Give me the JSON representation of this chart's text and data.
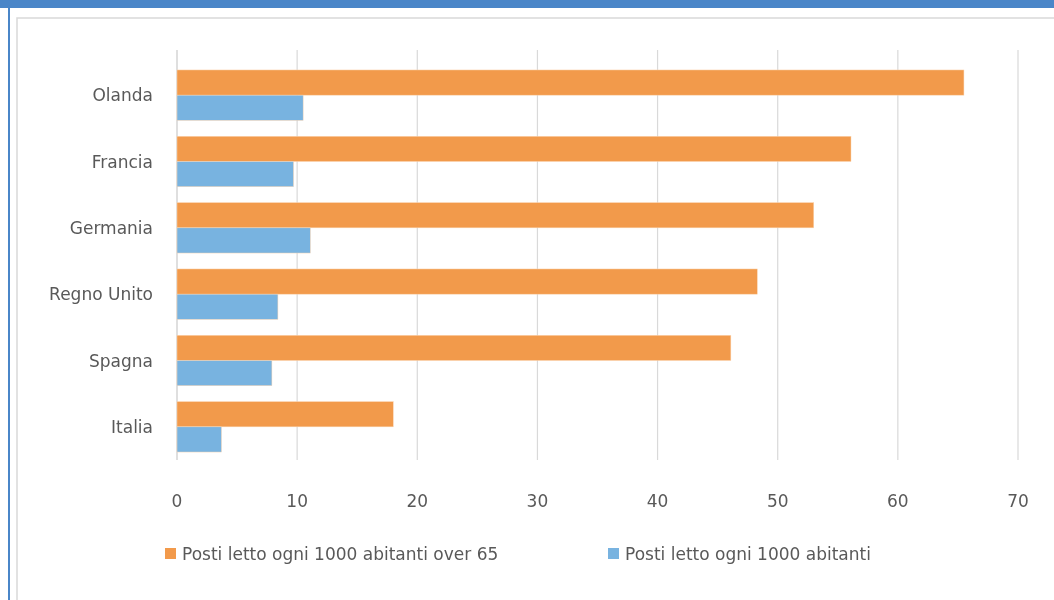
{
  "chart_data": {
    "type": "bar",
    "orientation": "horizontal",
    "categories": [
      "Olanda",
      "Francia",
      "Germania",
      "Regno Unito",
      "Spagna",
      "Italia"
    ],
    "series": [
      {
        "name": "Posti letto ogni 1000 abitanti over 65",
        "color": "#f29a4b",
        "values": [
          65.5,
          56.1,
          53.0,
          48.3,
          46.1,
          18.0
        ]
      },
      {
        "name": "Posti letto ogni 1000 abitanti",
        "color": "#78b3e0",
        "values": [
          10.5,
          9.7,
          11.1,
          8.4,
          7.9,
          3.7
        ]
      }
    ],
    "xlim": [
      0,
      70
    ],
    "xticks": [
      0,
      10,
      20,
      30,
      40,
      50,
      60,
      70
    ],
    "grid": "x",
    "legend": "bottom"
  }
}
